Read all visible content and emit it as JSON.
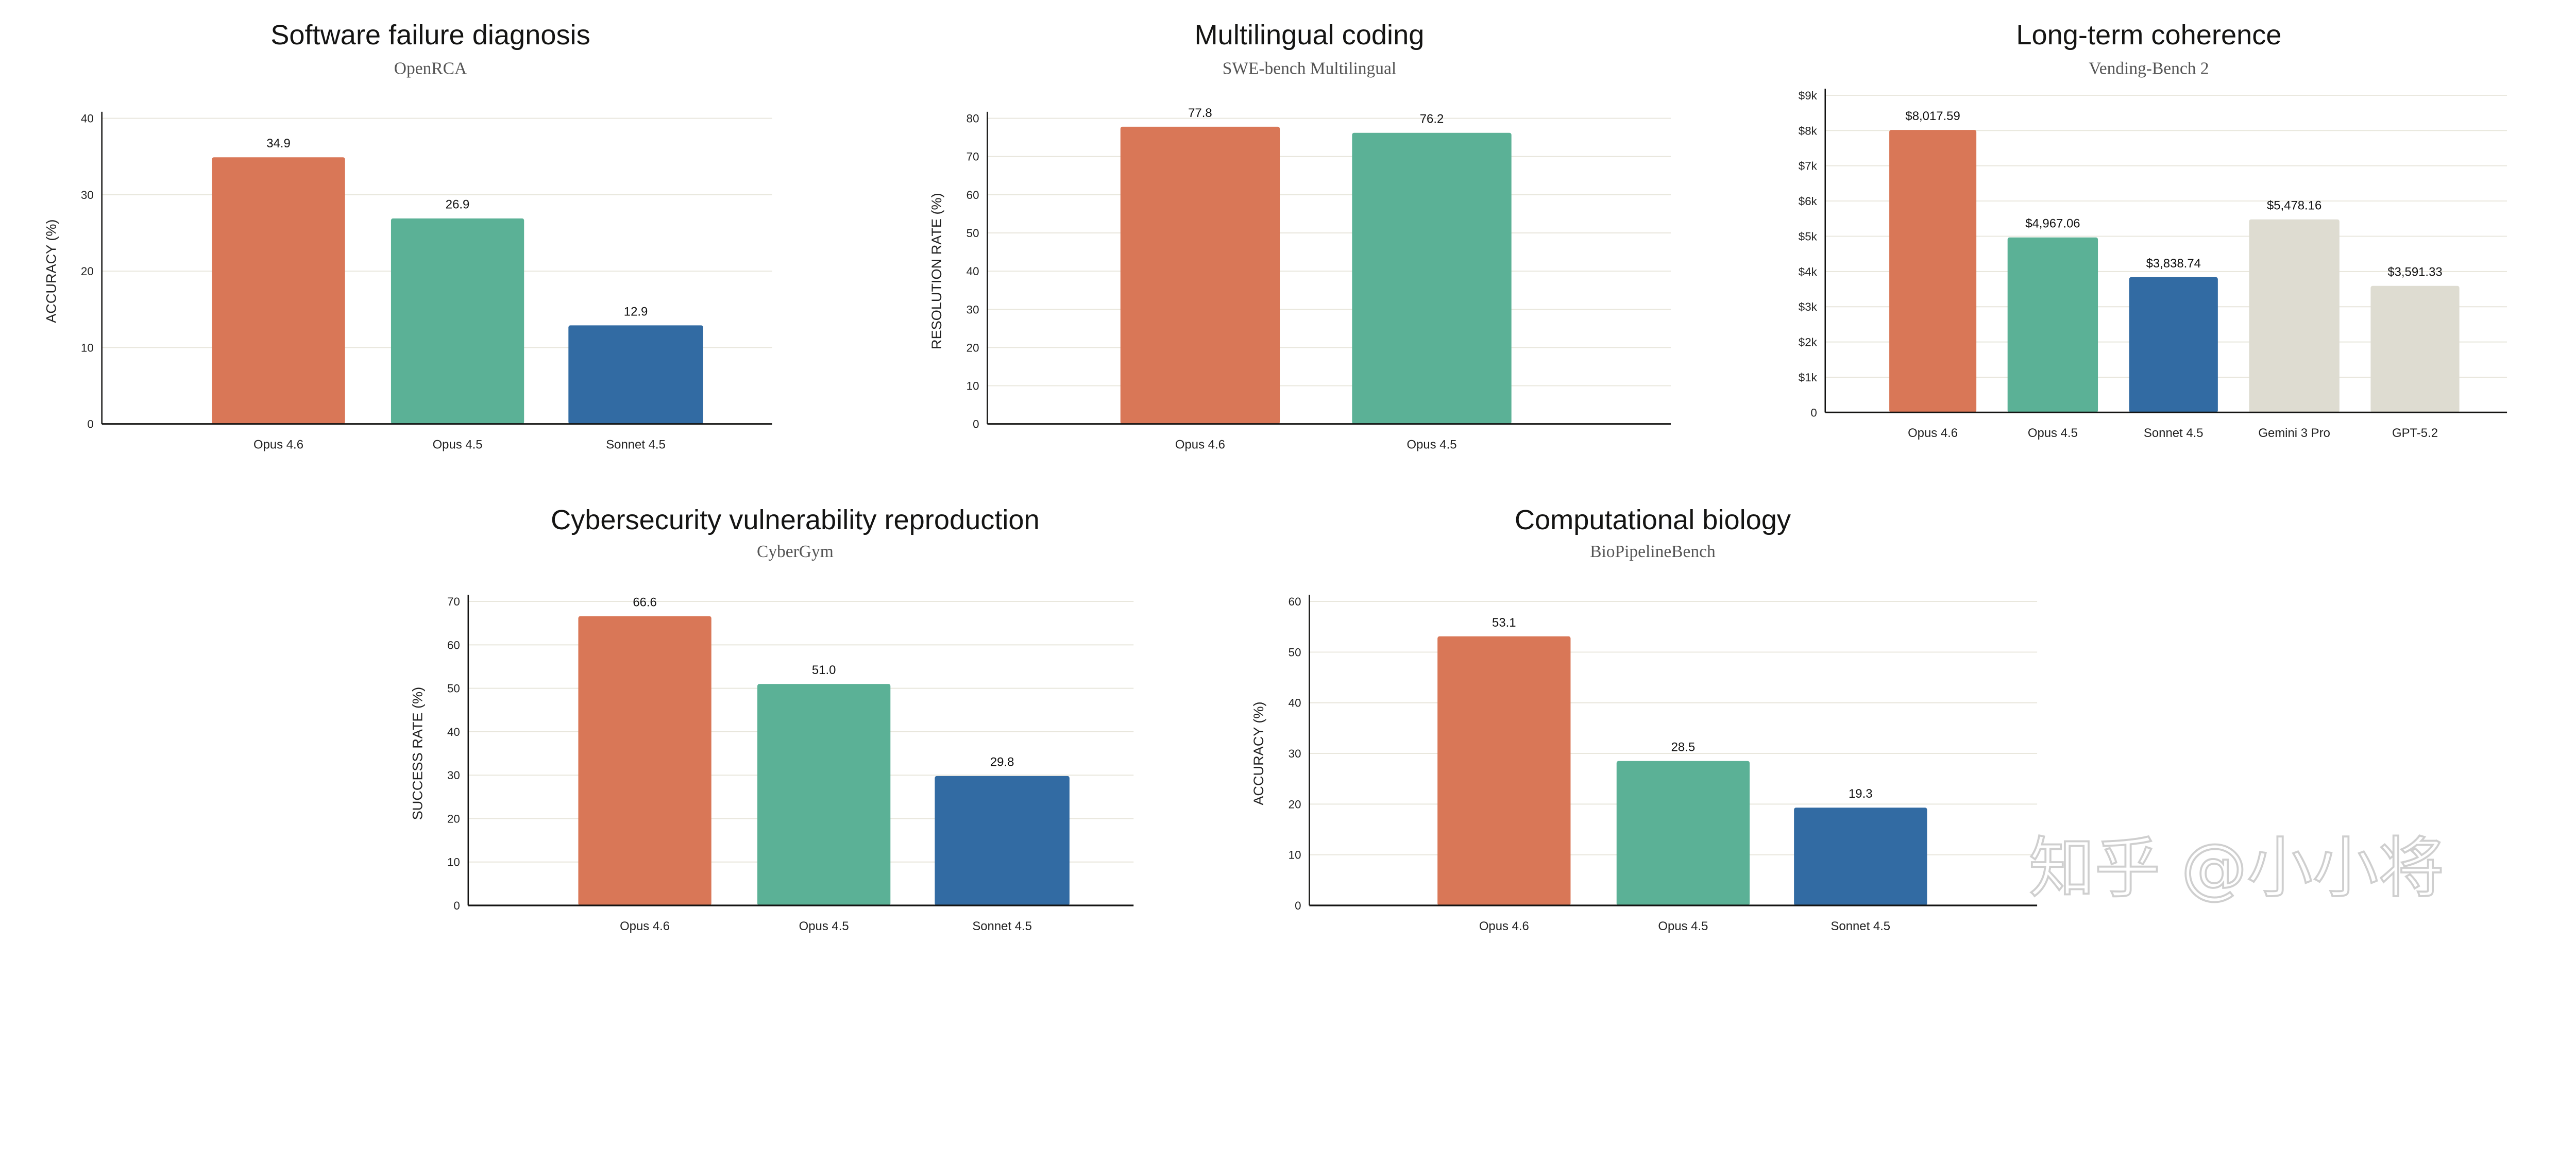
{
  "colors": {
    "Opus 4.6": "#D97757",
    "Opus 4.5": "#5BB196",
    "Sonnet 4.5": "#326BA3",
    "Gemini 3 Pro": "#DEDCD1",
    "GPT-5.2": "#DEDCD1",
    "grid": "#E8E6DC",
    "axis": "#141413"
  },
  "watermark": "知乎 @小小将",
  "chart_data": [
    {
      "type": "bar",
      "title": "Software failure diagnosis",
      "subtitle": "OpenRCA",
      "ylabel": "ACCURACY (%)",
      "categories": [
        "Opus 4.6",
        "Opus 4.5",
        "Sonnet 4.5"
      ],
      "values": [
        34.9,
        26.9,
        12.9
      ],
      "value_labels": [
        "34.9",
        "26.9",
        "12.9"
      ],
      "ylim": [
        0,
        40
      ],
      "yticks": [
        0,
        10,
        20,
        30,
        40
      ],
      "ytick_labels": [
        "0",
        "10",
        "20",
        "30",
        "40"
      ],
      "grid": true
    },
    {
      "type": "bar",
      "title": "Multilingual coding",
      "subtitle": "SWE-bench Multilingual",
      "ylabel": "RESOLUTION RATE (%)",
      "categories": [
        "Opus 4.6",
        "Opus 4.5"
      ],
      "values": [
        77.8,
        76.2
      ],
      "value_labels": [
        "77.8",
        "76.2"
      ],
      "ylim": [
        0,
        80
      ],
      "yticks": [
        0,
        10,
        20,
        30,
        40,
        50,
        60,
        70,
        80
      ],
      "ytick_labels": [
        "0",
        "10",
        "20",
        "30",
        "40",
        "50",
        "60",
        "70",
        "80"
      ],
      "grid": true
    },
    {
      "type": "bar",
      "title": "Long-term coherence",
      "subtitle": "Vending-Bench 2",
      "ylabel": "",
      "categories": [
        "Opus 4.6",
        "Opus 4.5",
        "Sonnet 4.5",
        "Gemini 3 Pro",
        "GPT-5.2"
      ],
      "values": [
        8017.59,
        4967.06,
        3838.74,
        5478.16,
        3591.33
      ],
      "value_labels": [
        "$8,017.59",
        "$4,967.06",
        "$3,838.74",
        "$5,478.16",
        "$3,591.33"
      ],
      "ylim": [
        0,
        9000
      ],
      "yticks": [
        0,
        1000,
        2000,
        3000,
        4000,
        5000,
        6000,
        7000,
        8000,
        9000
      ],
      "ytick_labels": [
        "0",
        "$1k",
        "$2k",
        "$3k",
        "$4k",
        "$5k",
        "$6k",
        "$7k",
        "$8k",
        "$9k"
      ],
      "grid": true
    },
    {
      "type": "bar",
      "title": "Cybersecurity vulnerability reproduction",
      "subtitle": "CyberGym",
      "ylabel": "SUCCESS RATE (%)",
      "categories": [
        "Opus 4.6",
        "Opus 4.5",
        "Sonnet 4.5"
      ],
      "values": [
        66.6,
        51.0,
        29.8
      ],
      "value_labels": [
        "66.6",
        "51.0",
        "29.8"
      ],
      "ylim": [
        0,
        70
      ],
      "yticks": [
        0,
        10,
        20,
        30,
        40,
        50,
        60,
        70
      ],
      "ytick_labels": [
        "0",
        "10",
        "20",
        "30",
        "40",
        "50",
        "60",
        "70"
      ],
      "grid": true
    },
    {
      "type": "bar",
      "title": "Computational biology",
      "subtitle": "BioPipelineBench",
      "ylabel": "ACCURACY (%)",
      "categories": [
        "Opus 4.6",
        "Opus 4.5",
        "Sonnet 4.5"
      ],
      "values": [
        53.1,
        28.5,
        19.3
      ],
      "value_labels": [
        "53.1",
        "28.5",
        "19.3"
      ],
      "ylim": [
        0,
        60
      ],
      "yticks": [
        0,
        10,
        20,
        30,
        40,
        50,
        60
      ],
      "ytick_labels": [
        "0",
        "10",
        "20",
        "30",
        "40",
        "50",
        "60"
      ],
      "grid": true
    }
  ]
}
